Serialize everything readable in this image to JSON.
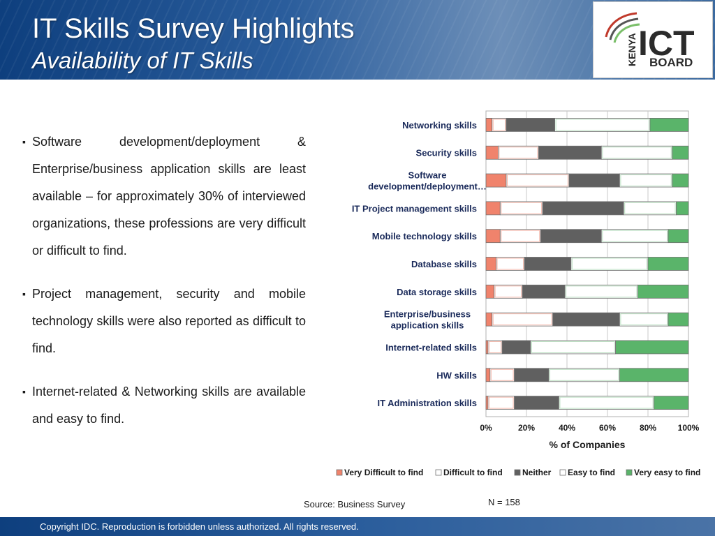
{
  "slide": {
    "title": "IT Skills Survey Highlights",
    "subtitle": "Availability of IT Skills",
    "bullets": [
      "Software development/deployment & Enterprise/business application skills are least available – for approximately 30% of interviewed organizations, these professions are very difficult or difficult to find.",
      "Project management, security and mobile technology skills were also reported as difficult to find.",
      "Internet-related & Networking skills are available and easy to find."
    ],
    "source": "Source: Business Survey",
    "n_label": "N = 158",
    "copyright": "Copyright IDC. Reproduction is forbidden unless authorized. All rights reserved.",
    "logo": {
      "top_text": "ICT",
      "bottom_text": "BOARD",
      "side_text": "KENYA"
    }
  },
  "colors": {
    "very_difficult": "#f0836c",
    "difficult": "#ffffff",
    "neither": "#606060",
    "easy": "#ffffff",
    "very_easy": "#5ab46a"
  },
  "chart_data": {
    "type": "bar",
    "orientation": "horizontal",
    "stacked": "percent",
    "categories": [
      [
        "Networking skills"
      ],
      [
        "Security skills"
      ],
      [
        "Software",
        "development/deployment…"
      ],
      [
        "IT Project management skills"
      ],
      [
        "Mobile technology skills"
      ],
      [
        "Database skills"
      ],
      [
        "Data storage skills"
      ],
      [
        "Enterprise/business",
        "application skills"
      ],
      [
        "Internet-related skills"
      ],
      [
        "HW skills"
      ],
      [
        "IT Administration skills"
      ]
    ],
    "series": [
      {
        "name": "Very Difficult to find",
        "values": [
          3,
          6,
          10,
          7,
          7,
          5,
          4,
          3,
          1,
          2,
          1
        ]
      },
      {
        "name": "Difficult to find",
        "values": [
          7,
          20,
          31,
          21,
          20,
          14,
          14,
          30,
          7,
          12,
          13
        ]
      },
      {
        "name": "Neither",
        "values": [
          24,
          31,
          25,
          40,
          30,
          23,
          21,
          33,
          14,
          17,
          22
        ]
      },
      {
        "name": "Easy to find",
        "values": [
          47,
          35,
          26,
          26,
          33,
          38,
          36,
          24,
          42,
          35,
          47
        ]
      },
      {
        "name": "Very easy to find",
        "values": [
          19,
          8,
          8,
          6,
          10,
          20,
          25,
          10,
          36,
          34,
          17
        ]
      }
    ],
    "xlabel": "% of Companies",
    "xlim": [
      0,
      100
    ],
    "xticks": [
      "0%",
      "20%",
      "40%",
      "60%",
      "80%",
      "100%"
    ],
    "grid": true,
    "legend_position": "bottom"
  }
}
